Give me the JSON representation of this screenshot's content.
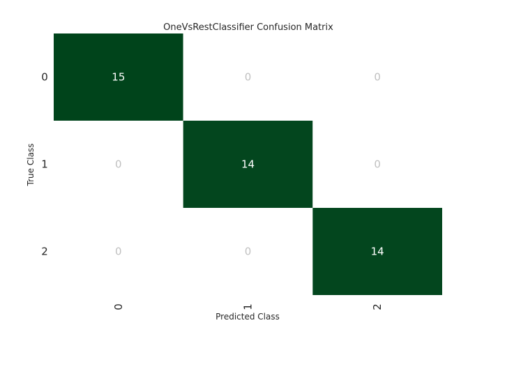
{
  "chart_data": {
    "type": "heatmap",
    "title": "OneVsRestClassifier Confusion Matrix",
    "xlabel": "Predicted Class",
    "ylabel": "True Class",
    "x_tick_labels": [
      "0",
      "1",
      "2"
    ],
    "y_tick_labels": [
      "0",
      "1",
      "2"
    ],
    "matrix": [
      [
        15,
        0,
        0
      ],
      [
        0,
        14,
        0
      ],
      [
        0,
        0,
        14
      ]
    ],
    "cell_labels": [
      [
        "15",
        "0",
        "0"
      ],
      [
        "0",
        "14",
        "0"
      ],
      [
        "0",
        "0",
        "14"
      ]
    ],
    "colors": {
      "filled_cell": "#00441b",
      "empty_cell": "#ffffff",
      "filled_text": "#ffffff",
      "empty_text": "#c0c0c0",
      "text": "#262626"
    },
    "grid": false
  }
}
